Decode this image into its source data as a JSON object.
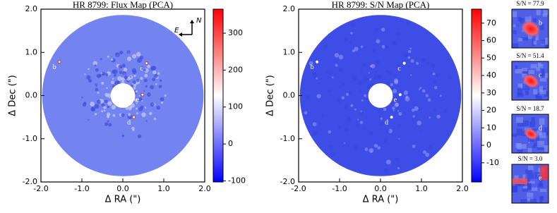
{
  "chart_data": [
    {
      "type": "image_map",
      "title": "HR 8799: Flux Map (PCA)",
      "x_label": "Δ RA (\")",
      "y_label": "Δ Dec (\")",
      "xlim": [
        -2,
        2
      ],
      "ylim": [
        -2,
        2
      ],
      "xticks": [
        {
          "value": -2,
          "label": "-2.0"
        },
        {
          "value": -1,
          "label": "-1.0"
        },
        {
          "value": 0,
          "label": "0.0"
        },
        {
          "value": 1,
          "label": "1.0"
        },
        {
          "value": 2,
          "label": "2.0"
        }
      ],
      "yticks": [
        {
          "value": 2,
          "label": "2.0"
        },
        {
          "value": 1,
          "label": "1.0"
        },
        {
          "value": 0,
          "label": "0.0"
        },
        {
          "value": -1,
          "label": "-1.0"
        },
        {
          "value": -2,
          "label": "-2.0"
        }
      ],
      "field": {
        "outer_radius": 1.97,
        "inner_radius": 0.3,
        "color": "#7383ef"
      },
      "colorbar": {
        "lim": [
          -103,
          365
        ],
        "ticks": [
          300,
          200,
          100,
          0,
          -100
        ],
        "colors": [
          "#0000ff",
          "#ffffff",
          "#ff0000"
        ]
      },
      "planets": [
        {
          "name": "b",
          "x": -1.55,
          "y": 0.78
        },
        {
          "name": "c",
          "x": 0.58,
          "y": 0.75
        },
        {
          "name": "d",
          "x": 0.27,
          "y": -0.5
        },
        {
          "name": "e",
          "x": 0.48,
          "y": 0.02
        }
      ],
      "compass": {
        "north": "N",
        "east": "E"
      }
    },
    {
      "type": "image_map",
      "title": "HR 8799: S/N Map (PCA)",
      "x_label": "Δ RA (\")",
      "y_label": "Δ Dec (\")",
      "xlim": [
        -2,
        2
      ],
      "ylim": [
        -2,
        2
      ],
      "xticks": [
        {
          "value": -2,
          "label": "-2.0"
        },
        {
          "value": -1,
          "label": "-1.0"
        },
        {
          "value": 0,
          "label": "0.0"
        },
        {
          "value": 1,
          "label": "1.0"
        },
        {
          "value": 2,
          "label": "2.0"
        }
      ],
      "yticks": [
        {
          "value": 2,
          "label": "2.0"
        },
        {
          "value": 1,
          "label": "1.0"
        },
        {
          "value": 0,
          "label": "0.0"
        },
        {
          "value": -1,
          "label": "-1.0"
        },
        {
          "value": -2,
          "label": "-2.0"
        }
      ],
      "field": {
        "outer_radius": 1.97,
        "inner_radius": 0.3,
        "color": "#3e4de6"
      },
      "colorbar": {
        "lim": [
          -21,
          78
        ],
        "ticks": [
          70,
          60,
          50,
          40,
          30,
          20,
          10,
          0,
          -10
        ],
        "colors": [
          "#0000ff",
          "#ffffff",
          "#ff0000"
        ]
      },
      "planets": [
        {
          "name": "b",
          "x": -1.55,
          "y": 0.78
        },
        {
          "name": "c",
          "x": 0.58,
          "y": 0.75
        },
        {
          "name": "d",
          "x": 0.27,
          "y": -0.5
        },
        {
          "name": "e",
          "x": 0.48,
          "y": 0.02
        }
      ]
    }
  ],
  "thumbnails": [
    {
      "title": "S/N = 77.9",
      "label": "b"
    },
    {
      "title": "S/N = 51.4",
      "label": "c"
    },
    {
      "title": "S/N = 18.7",
      "label": "d"
    },
    {
      "title": "S/N = 3.0",
      "label": "e"
    }
  ]
}
